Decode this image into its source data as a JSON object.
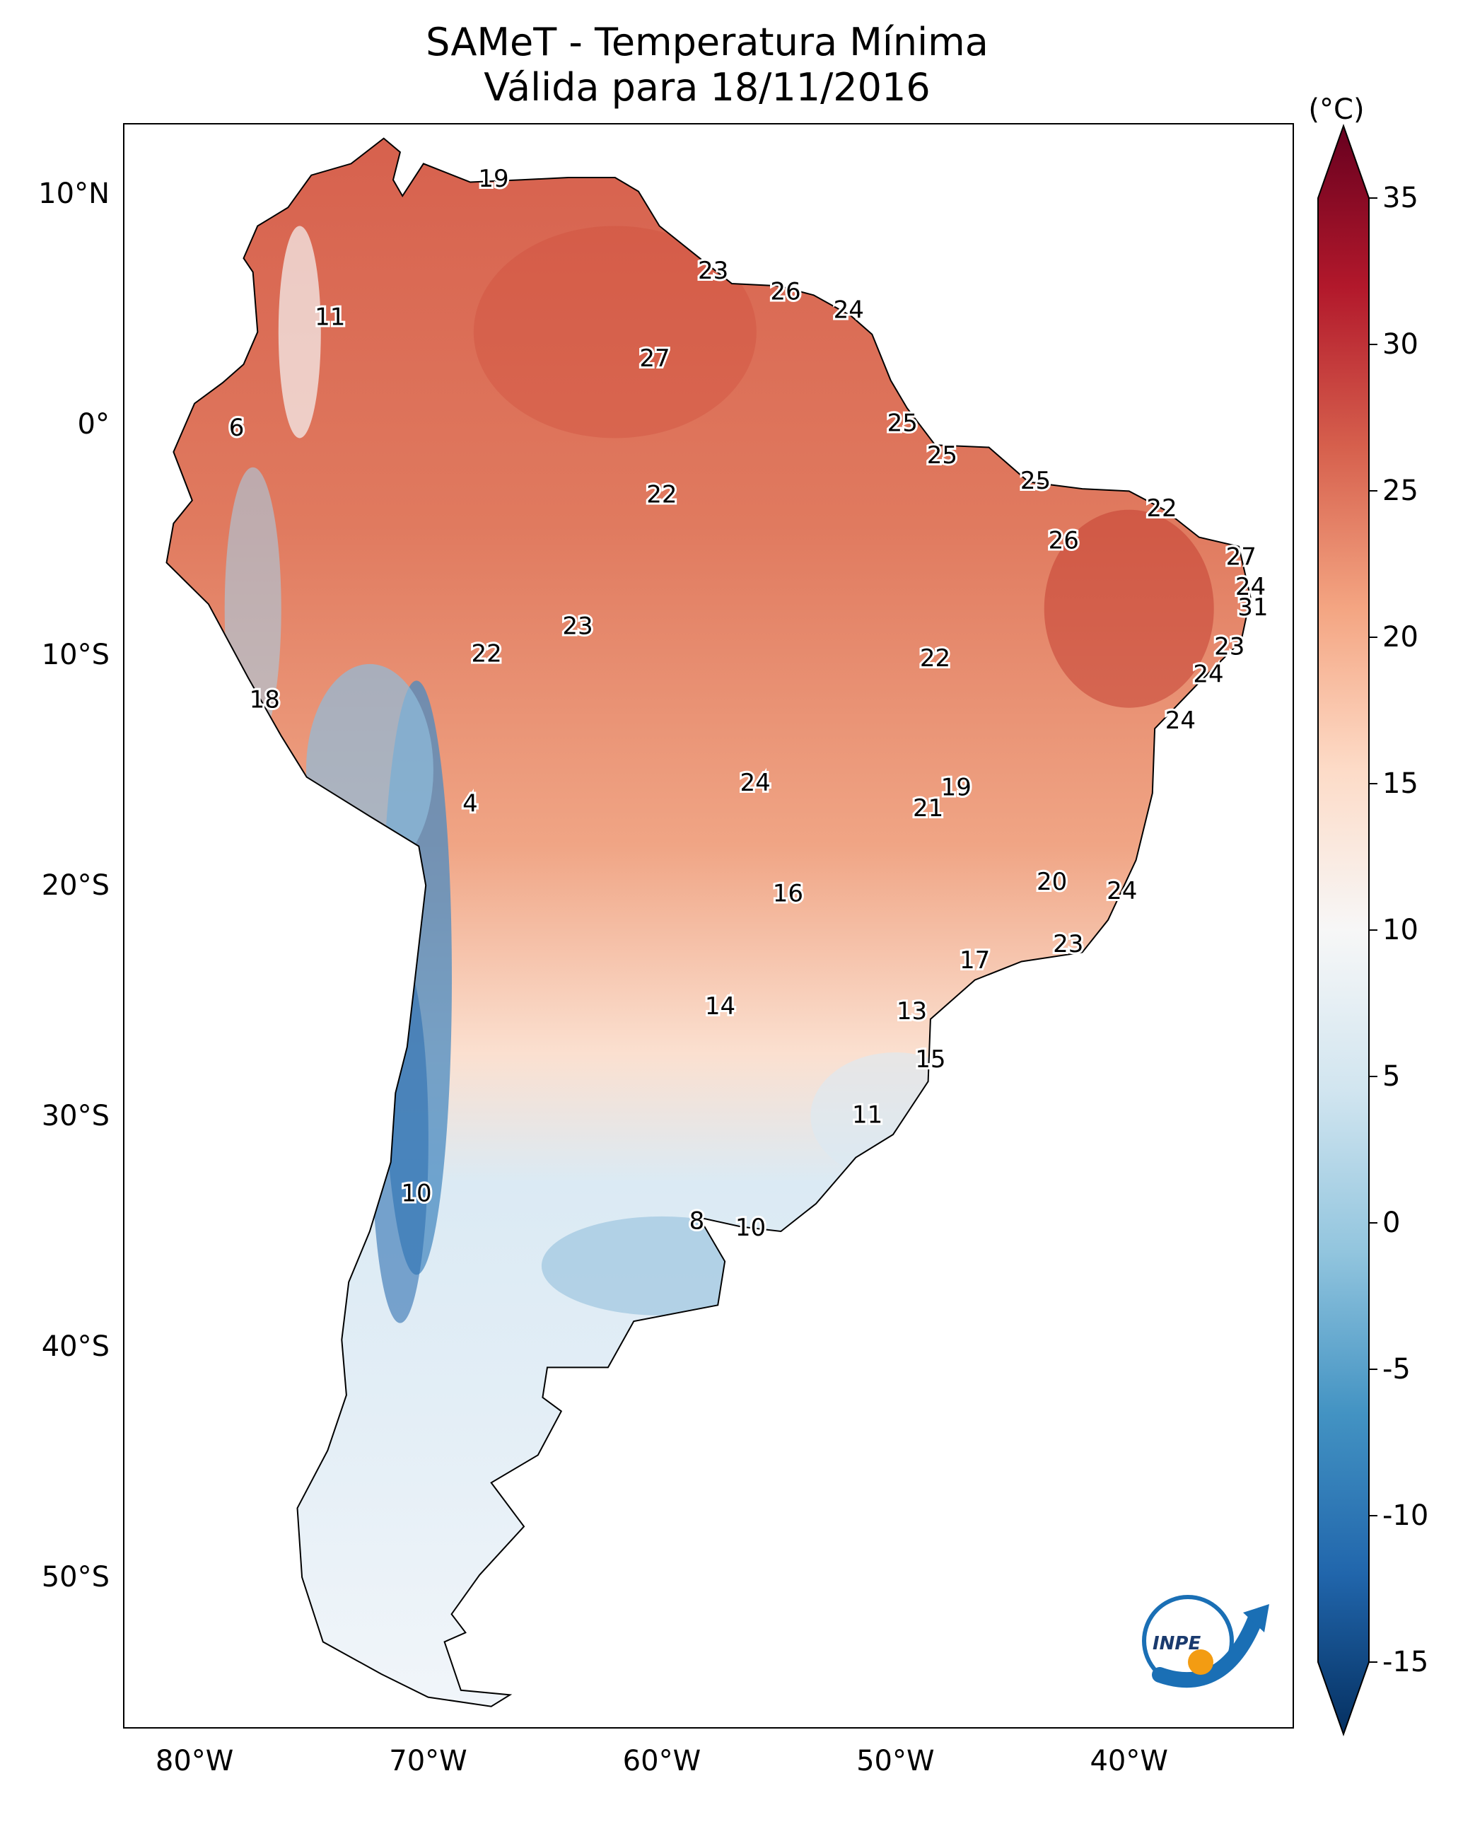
{
  "title": {
    "line1": "SAMeT - Temperatura Mínima",
    "line2": "Válida para 18/11/2016"
  },
  "axes": {
    "lat_ticks": [
      {
        "label": "10°N",
        "value": 10
      },
      {
        "label": "0°",
        "value": 0
      },
      {
        "label": "10°S",
        "value": -10
      },
      {
        "label": "20°S",
        "value": -20
      },
      {
        "label": "30°S",
        "value": -30
      },
      {
        "label": "40°S",
        "value": -40
      },
      {
        "label": "50°S",
        "value": -50
      }
    ],
    "lon_ticks": [
      {
        "label": "80°W",
        "value": -80
      },
      {
        "label": "70°W",
        "value": -70
      },
      {
        "label": "60°W",
        "value": -60
      },
      {
        "label": "50°W",
        "value": -50
      },
      {
        "label": "40°W",
        "value": -40
      }
    ],
    "lat_range": [
      -56.5,
      13
    ],
    "lon_range": [
      -83,
      -33
    ]
  },
  "colorbar": {
    "unit": "(°C)",
    "min": -15,
    "max": 35,
    "ticks": [
      {
        "label": "35",
        "value": 35
      },
      {
        "label": "30",
        "value": 30
      },
      {
        "label": "25",
        "value": 25
      },
      {
        "label": "20",
        "value": 20
      },
      {
        "label": "15",
        "value": 15
      },
      {
        "label": "10",
        "value": 10
      },
      {
        "label": "5",
        "value": 5
      },
      {
        "label": "0",
        "value": 0
      },
      {
        "label": "-5",
        "value": -5
      },
      {
        "label": "-10",
        "value": -10
      },
      {
        "label": "-15",
        "value": -15
      }
    ],
    "colors": [
      "#053061",
      "#2166ac",
      "#4393c3",
      "#92c5de",
      "#d1e5f0",
      "#f7f7f7",
      "#fddbc7",
      "#f4a582",
      "#d6604d",
      "#b2182b",
      "#67001f"
    ]
  },
  "chart_data": {
    "type": "heatmap",
    "variable": "minimum temperature",
    "station_values": [
      {
        "label": "19",
        "lon": -67.2,
        "lat": 10.6
      },
      {
        "label": "11",
        "lon": -74.2,
        "lat": 4.6
      },
      {
        "label": "23",
        "lon": -57.8,
        "lat": 6.6
      },
      {
        "label": "26",
        "lon": -54.7,
        "lat": 5.7
      },
      {
        "label": "24",
        "lon": -52.0,
        "lat": 4.9
      },
      {
        "label": "27",
        "lon": -60.3,
        "lat": 2.8
      },
      {
        "label": "6",
        "lon": -78.2,
        "lat": -0.2
      },
      {
        "label": "25",
        "lon": -49.7,
        "lat": 0.0
      },
      {
        "label": "25",
        "lon": -48.0,
        "lat": -1.4
      },
      {
        "label": "22",
        "lon": -60.0,
        "lat": -3.1
      },
      {
        "label": "25",
        "lon": -44.0,
        "lat": -2.5
      },
      {
        "label": "22",
        "lon": -38.6,
        "lat": -3.7
      },
      {
        "label": "26",
        "lon": -42.8,
        "lat": -5.1
      },
      {
        "label": "27",
        "lon": -35.2,
        "lat": -5.8
      },
      {
        "label": "24",
        "lon": -34.8,
        "lat": -7.1
      },
      {
        "label": "31",
        "lon": -34.7,
        "lat": -8.0
      },
      {
        "label": "23",
        "lon": -63.6,
        "lat": -8.8
      },
      {
        "label": "22",
        "lon": -67.5,
        "lat": -10.0
      },
      {
        "label": "22",
        "lon": -48.3,
        "lat": -10.2
      },
      {
        "label": "23",
        "lon": -35.7,
        "lat": -9.7
      },
      {
        "label": "24",
        "lon": -36.6,
        "lat": -10.9
      },
      {
        "label": "18",
        "lon": -77.0,
        "lat": -12.0
      },
      {
        "label": "24",
        "lon": -37.8,
        "lat": -12.9
      },
      {
        "label": "24",
        "lon": -56.0,
        "lat": -15.6
      },
      {
        "label": "19",
        "lon": -47.4,
        "lat": -15.8
      },
      {
        "label": "21",
        "lon": -48.6,
        "lat": -16.7
      },
      {
        "label": "4",
        "lon": -68.2,
        "lat": -16.5
      },
      {
        "label": "20",
        "lon": -43.3,
        "lat": -19.9
      },
      {
        "label": "24",
        "lon": -40.3,
        "lat": -20.3
      },
      {
        "label": "16",
        "lon": -54.6,
        "lat": -20.4
      },
      {
        "label": "23",
        "lon": -42.6,
        "lat": -22.6
      },
      {
        "label": "17",
        "lon": -46.6,
        "lat": -23.3
      },
      {
        "label": "14",
        "lon": -57.5,
        "lat": -25.3
      },
      {
        "label": "13",
        "lon": -49.3,
        "lat": -25.5
      },
      {
        "label": "15",
        "lon": -48.5,
        "lat": -27.6
      },
      {
        "label": "11",
        "lon": -51.2,
        "lat": -30.0
      },
      {
        "label": "10",
        "lon": -70.5,
        "lat": -33.4
      },
      {
        "label": "8",
        "lon": -58.5,
        "lat": -34.6
      },
      {
        "label": "10",
        "lon": -56.2,
        "lat": -34.9
      }
    ]
  },
  "logo": {
    "text": "INPE"
  }
}
